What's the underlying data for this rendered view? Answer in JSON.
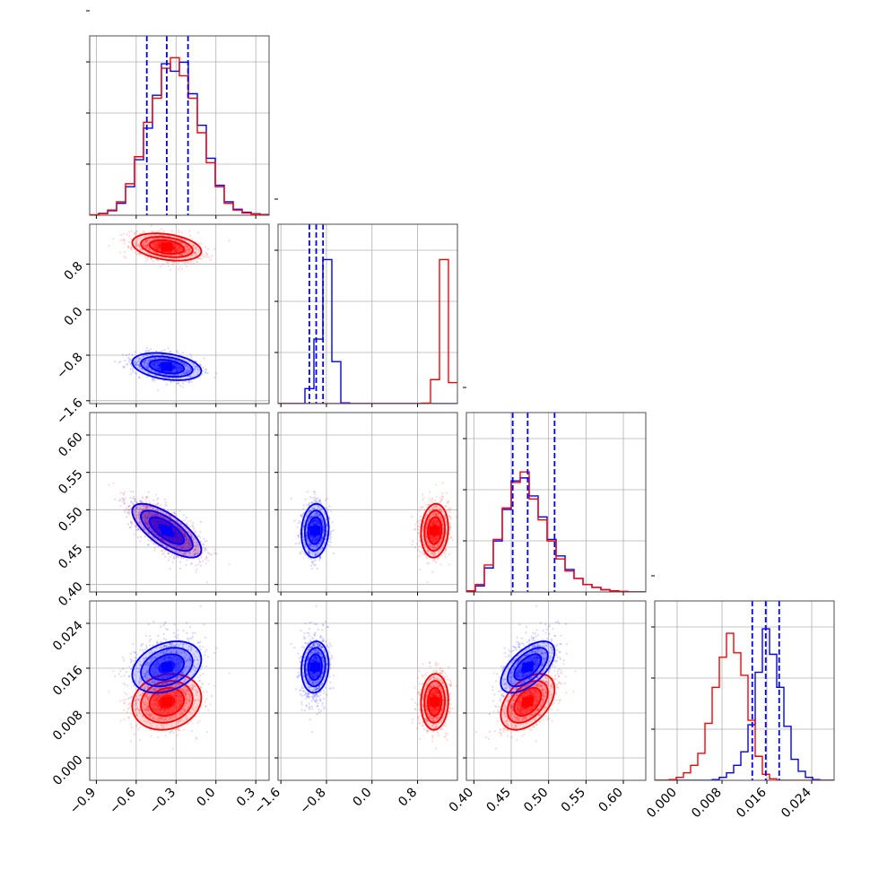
{
  "colors": {
    "series_a": "#0000ff",
    "series_b": "#ff0000",
    "grid": "#b0b0b0"
  },
  "chart_data": {
    "type": "corner",
    "grid": true,
    "series": [
      {
        "color": "#0000ff"
      },
      {
        "color": "#ff0000"
      }
    ],
    "parameters": [
      {
        "range": [
          -0.95,
          0.4
        ],
        "ticks": [
          -0.9,
          -0.6,
          -0.3,
          0.0,
          0.3
        ],
        "tick_labels": [
          "−0.9",
          "−0.6",
          "−0.3",
          "0.0",
          "0.3"
        ],
        "quantiles_a": [
          -0.52,
          -0.37,
          -0.21
        ],
        "hist_a": [
          0.2,
          1.2,
          3.0,
          8.0,
          19.0,
          37.0,
          58.0,
          80.0,
          101.0,
          96.0,
          102.0,
          81.0,
          60.0,
          38.0,
          20.0,
          9.0,
          4.0,
          2.0,
          1.0,
          0.5
        ],
        "hist_b": [
          0.3,
          1.0,
          3.5,
          9.0,
          21.0,
          39.0,
          62.0,
          78.0,
          98.0,
          105.0,
          93.0,
          78.0,
          55.0,
          35.0,
          19.0,
          8.0,
          3.5,
          1.5,
          0.8,
          0.3
        ]
      },
      {
        "range": [
          -1.65,
          1.5
        ],
        "ticks": [
          -1.6,
          -0.8,
          0.0,
          0.8
        ],
        "tick_labels": [
          "−1.6",
          "−0.8",
          "0.0",
          "0.8"
        ],
        "quantiles_a": [
          -1.1,
          -0.98,
          -0.86
        ],
        "hist_a": [
          0.0,
          0.0,
          0.0,
          10.0,
          43.0,
          96.0,
          28.0,
          0.5,
          0.0,
          0.0,
          0.0,
          0.0,
          0.0,
          0.0,
          0.0,
          0.0,
          0.0,
          0.0,
          0.0,
          0.0
        ],
        "hist_b": [
          0.0,
          0.0,
          0.0,
          0.0,
          0.0,
          0.0,
          0.0,
          0.0,
          0.0,
          0.0,
          0.0,
          0.0,
          0.0,
          0.0,
          0.0,
          0.0,
          0.3,
          16.0,
          96.0,
          14.0
        ]
      },
      {
        "range": [
          0.39,
          0.63
        ],
        "ticks": [
          0.4,
          0.45,
          0.5,
          0.55,
          0.6
        ],
        "tick_labels": [
          "0.40",
          "0.45",
          "0.50",
          "0.55",
          "0.60"
        ],
        "quantiles_a": [
          0.452,
          0.472,
          0.508
        ],
        "hist_a": [
          0.5,
          4.0,
          16.0,
          34.0,
          55.0,
          74.0,
          76.0,
          64.0,
          50.0,
          35.0,
          24.0,
          15.0,
          9.0,
          5.0,
          3.0,
          1.5,
          0.8,
          0.3,
          0.0,
          0.0
        ],
        "hist_b": [
          0.8,
          5.0,
          18.0,
          35.0,
          56.0,
          73.0,
          80.0,
          62.0,
          48.0,
          34.0,
          22.0,
          14.0,
          9.0,
          5.0,
          3.0,
          1.5,
          0.8,
          0.3,
          0.0,
          0.0
        ]
      },
      {
        "range": [
          -0.004,
          0.028
        ],
        "ticks": [
          0.0,
          0.008,
          0.016,
          0.024
        ],
        "tick_labels": [
          "0.000",
          "0.008",
          "0.016",
          "0.024"
        ],
        "quantiles_a": [
          0.0134,
          0.0158,
          0.0182
        ],
        "hist_a": [
          0.0,
          0.0,
          0.0,
          0.0,
          0.0,
          0.0,
          0.0,
          0.0,
          0.5,
          2.0,
          5.0,
          10.0,
          19.0,
          37.0,
          72.0,
          101.0,
          84.0,
          62.0,
          36.0,
          14.0,
          6.0,
          2.0,
          0.5,
          0.0,
          0.0
        ],
        "hist_b": [
          0.0,
          0.0,
          0.5,
          2.0,
          5.0,
          10.0,
          18.0,
          38.0,
          62.0,
          82.0,
          98.0,
          85.0,
          70.0,
          40.0,
          16.0,
          4.0,
          1.0,
          0.0,
          0.0,
          0.0,
          0.0,
          0.0,
          0.0,
          0.0,
          0.0
        ]
      }
    ],
    "clouds_a": [
      [
        -0.37,
        -1.0,
        0.472,
        0.0162
      ],
      [
        0.13,
        0.12,
        0.018,
        0.0023
      ],
      [
        [
          1,
          -0.32,
          -0.72,
          0.3
        ],
        [
          -0.32,
          1,
          0.1,
          0.1
        ],
        [
          -0.72,
          0.1,
          1,
          0.6
        ],
        [
          0.3,
          0.1,
          0.6,
          1
        ]
      ]
    ],
    "clouds_b": [
      [
        -0.37,
        1.1,
        0.472,
        0.01
      ],
      [
        0.13,
        0.12,
        0.018,
        0.0025
      ],
      [
        [
          1,
          -0.32,
          -0.72,
          0.15
        ],
        [
          -0.32,
          1,
          0.1,
          0.05
        ],
        [
          -0.72,
          0.1,
          1,
          0.45
        ],
        [
          0.15,
          0.05,
          0.45,
          1
        ]
      ]
    ]
  }
}
